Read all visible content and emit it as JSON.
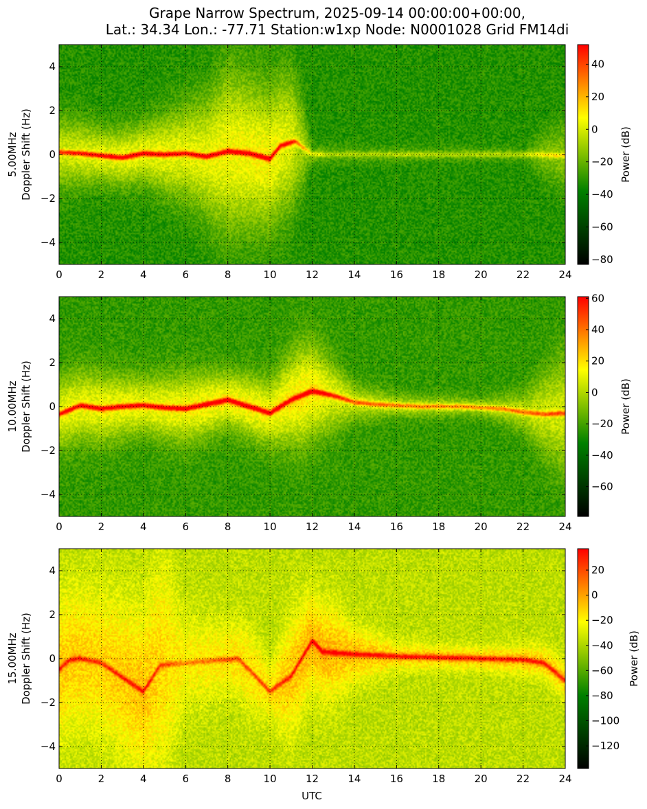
{
  "chart_data": {
    "type": "heatmap",
    "title_lines": [
      "Grape Narrow Spectrum, 2025-09-14 00:00:00+00:00,",
      "Lat.: 34.34 Lon.: -77.71 Station:w1xp Node: N0001028 Grid FM14di"
    ],
    "xlabel": "UTC",
    "x_range": [
      0,
      24
    ],
    "x_ticks": [
      "0",
      "2",
      "4",
      "6",
      "8",
      "10",
      "12",
      "14",
      "16",
      "18",
      "20",
      "22",
      "24"
    ],
    "y_range": [
      -5,
      5
    ],
    "y_ticks": [
      "4",
      "2",
      "0",
      "−2",
      "−4"
    ],
    "grid": true,
    "colormap": [
      "#000000",
      "#008000",
      "#ffff00",
      "#ff0000"
    ],
    "panels": [
      {
        "frequency_label": "5.00MHz",
        "ylabel": "Doppler Shift (Hz)",
        "colorbar_label": "Power (dB)",
        "colorbar_range": [
          -83,
          52
        ],
        "colorbar_ticks": [
          "40",
          "20",
          "0",
          "−20",
          "−40",
          "−60",
          "−80"
        ],
        "colorbar_tick_values": [
          40,
          20,
          0,
          -20,
          -40,
          -60,
          -80
        ],
        "background_level": 0.38,
        "trace": [
          [
            0,
            0.1
          ],
          [
            1,
            0.05
          ],
          [
            2,
            -0.05
          ],
          [
            3,
            -0.15
          ],
          [
            4,
            0.05
          ],
          [
            5,
            0.0
          ],
          [
            6,
            0.05
          ],
          [
            7,
            -0.1
          ],
          [
            8,
            0.15
          ],
          [
            9,
            0.05
          ],
          [
            10,
            -0.2
          ],
          [
            10.5,
            0.4
          ],
          [
            11.2,
            0.6
          ],
          [
            12,
            0.0
          ],
          [
            13,
            0.0
          ],
          [
            16,
            0.0
          ],
          [
            20,
            0.0
          ],
          [
            22.5,
            0.0
          ],
          [
            24,
            -0.05
          ]
        ],
        "trace_level": [
          [
            0,
            0.75
          ],
          [
            2,
            0.8
          ],
          [
            4,
            0.82
          ],
          [
            6,
            0.8
          ],
          [
            8,
            0.84
          ],
          [
            10,
            0.86
          ],
          [
            11,
            0.78
          ],
          [
            12,
            0.55
          ],
          [
            13,
            0.5
          ],
          [
            22,
            0.5
          ],
          [
            23,
            0.58
          ],
          [
            24,
            0.6
          ]
        ],
        "envelope": [
          [
            0,
            1.5
          ],
          [
            2,
            1.2
          ],
          [
            4,
            1.3
          ],
          [
            7,
            2.5
          ],
          [
            8,
            3.5
          ],
          [
            9,
            3.2
          ],
          [
            10,
            3.0
          ],
          [
            11,
            3.0
          ],
          [
            11.5,
            2.0
          ],
          [
            12,
            0.4
          ],
          [
            22,
            0.3
          ],
          [
            23,
            1.0
          ],
          [
            24,
            1.5
          ]
        ]
      },
      {
        "frequency_label": "10.00MHz",
        "ylabel": "Doppler Shift (Hz)",
        "colorbar_label": "Power (dB)",
        "colorbar_range": [
          -79,
          61
        ],
        "colorbar_ticks": [
          "60",
          "40",
          "20",
          "0",
          "−20",
          "−40",
          "−60"
        ],
        "colorbar_tick_values": [
          60,
          40,
          20,
          0,
          -20,
          -40,
          -60
        ],
        "background_level": 0.4,
        "trace": [
          [
            0,
            -0.35
          ],
          [
            1,
            0.05
          ],
          [
            2,
            -0.1
          ],
          [
            3,
            0.0
          ],
          [
            4,
            0.05
          ],
          [
            5,
            -0.05
          ],
          [
            6,
            -0.1
          ],
          [
            7,
            0.1
          ],
          [
            8,
            0.3
          ],
          [
            9,
            0.0
          ],
          [
            10,
            -0.3
          ],
          [
            11,
            0.3
          ],
          [
            12,
            0.7
          ],
          [
            13,
            0.5
          ],
          [
            14,
            0.2
          ],
          [
            15,
            0.1
          ],
          [
            17,
            0.0
          ],
          [
            19,
            0.0
          ],
          [
            21,
            -0.1
          ],
          [
            22,
            -0.25
          ],
          [
            23,
            -0.35
          ],
          [
            24,
            -0.3
          ]
        ],
        "trace_level": [
          [
            0,
            0.8
          ],
          [
            2,
            0.82
          ],
          [
            4,
            0.82
          ],
          [
            6,
            0.84
          ],
          [
            8,
            0.86
          ],
          [
            10,
            0.85
          ],
          [
            12,
            0.88
          ],
          [
            13,
            0.78
          ],
          [
            14,
            0.72
          ],
          [
            16,
            0.68
          ],
          [
            20,
            0.66
          ],
          [
            22,
            0.7
          ],
          [
            24,
            0.74
          ]
        ],
        "envelope": [
          [
            0,
            1.5
          ],
          [
            2,
            1.5
          ],
          [
            4,
            1.2
          ],
          [
            6,
            1.5
          ],
          [
            8,
            1.2
          ],
          [
            10,
            1.4
          ],
          [
            11.5,
            2.2
          ],
          [
            12.5,
            1.8
          ],
          [
            14,
            0.8
          ],
          [
            16,
            0.5
          ],
          [
            20,
            0.4
          ],
          [
            22,
            0.8
          ],
          [
            23,
            1.8
          ],
          [
            24,
            2.5
          ]
        ]
      },
      {
        "frequency_label": "15.00MHz",
        "ylabel": "Doppler Shift (Hz)",
        "colorbar_label": "Power (dB)",
        "colorbar_range": [
          -138,
          37
        ],
        "colorbar_ticks": [
          "20",
          "0",
          "−20",
          "−40",
          "−60",
          "−80",
          "−100",
          "−120"
        ],
        "colorbar_tick_values": [
          20,
          0,
          -20,
          -40,
          -60,
          -80,
          -100,
          -120
        ],
        "background_level": 0.58,
        "trace": [
          [
            0,
            -0.5
          ],
          [
            0.5,
            -0.05
          ],
          [
            1,
            0.0
          ],
          [
            1.5,
            -0.1
          ],
          [
            2,
            -0.2
          ],
          [
            4,
            -1.5
          ],
          [
            4.8,
            -0.3
          ],
          [
            8.5,
            0.0
          ],
          [
            10,
            -1.5
          ],
          [
            11,
            -0.8
          ],
          [
            12,
            0.8
          ],
          [
            12.5,
            0.3
          ],
          [
            14,
            0.2
          ],
          [
            16,
            0.1
          ],
          [
            18,
            0.05
          ],
          [
            20,
            0.0
          ],
          [
            22,
            -0.05
          ],
          [
            23,
            -0.2
          ],
          [
            24,
            -1.0
          ]
        ],
        "trace_level": [
          [
            0,
            0.84
          ],
          [
            2,
            0.82
          ],
          [
            4,
            0.86
          ],
          [
            6,
            0.74
          ],
          [
            8,
            0.78
          ],
          [
            10,
            0.8
          ],
          [
            12,
            0.9
          ],
          [
            13,
            0.88
          ],
          [
            16,
            0.84
          ],
          [
            20,
            0.84
          ],
          [
            24,
            0.84
          ]
        ],
        "envelope": [
          [
            0,
            3.0
          ],
          [
            2,
            3.0
          ],
          [
            4,
            3.5
          ],
          [
            5,
            4.5
          ],
          [
            6,
            2.0
          ],
          [
            8,
            1.5
          ],
          [
            9,
            1.8
          ],
          [
            10,
            1.2
          ],
          [
            11,
            2.5
          ],
          [
            12,
            2.0
          ],
          [
            13,
            2.0
          ],
          [
            14,
            1.2
          ],
          [
            16,
            0.6
          ],
          [
            20,
            0.5
          ],
          [
            24,
            0.8
          ]
        ]
      }
    ]
  }
}
